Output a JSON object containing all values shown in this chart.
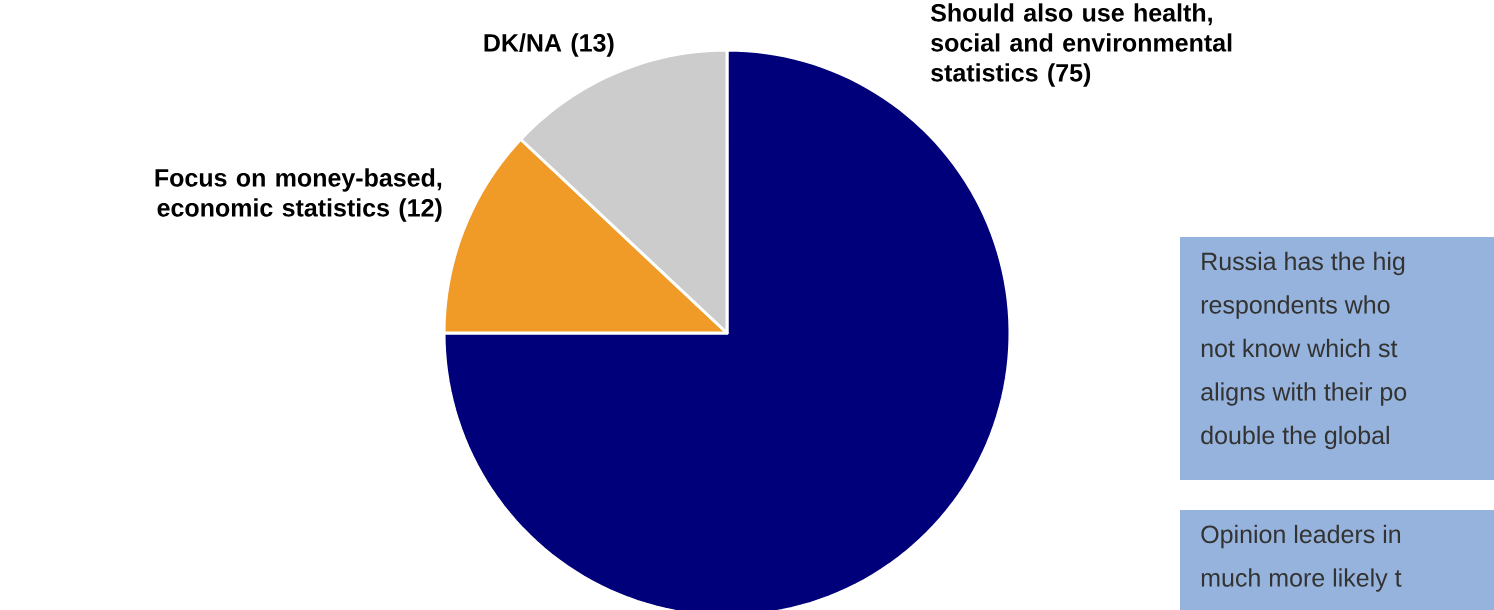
{
  "chart_data": {
    "type": "pie",
    "categories": [
      "Should also use health, social and environmental statistics",
      "Focus on money-based, economic statistics",
      "DK/NA"
    ],
    "values": [
      75,
      12,
      13
    ],
    "colors": [
      "#00007a",
      "#f09a28",
      "#cccccc"
    ],
    "value_labels": [
      "(75)",
      "(12)",
      "(13)"
    ],
    "annotations": [
      "Russia has the hig",
      "respondents who",
      "not know which st",
      "aligns with their po",
      "double the global",
      "Opinion leaders in",
      "much more likely t"
    ]
  }
}
